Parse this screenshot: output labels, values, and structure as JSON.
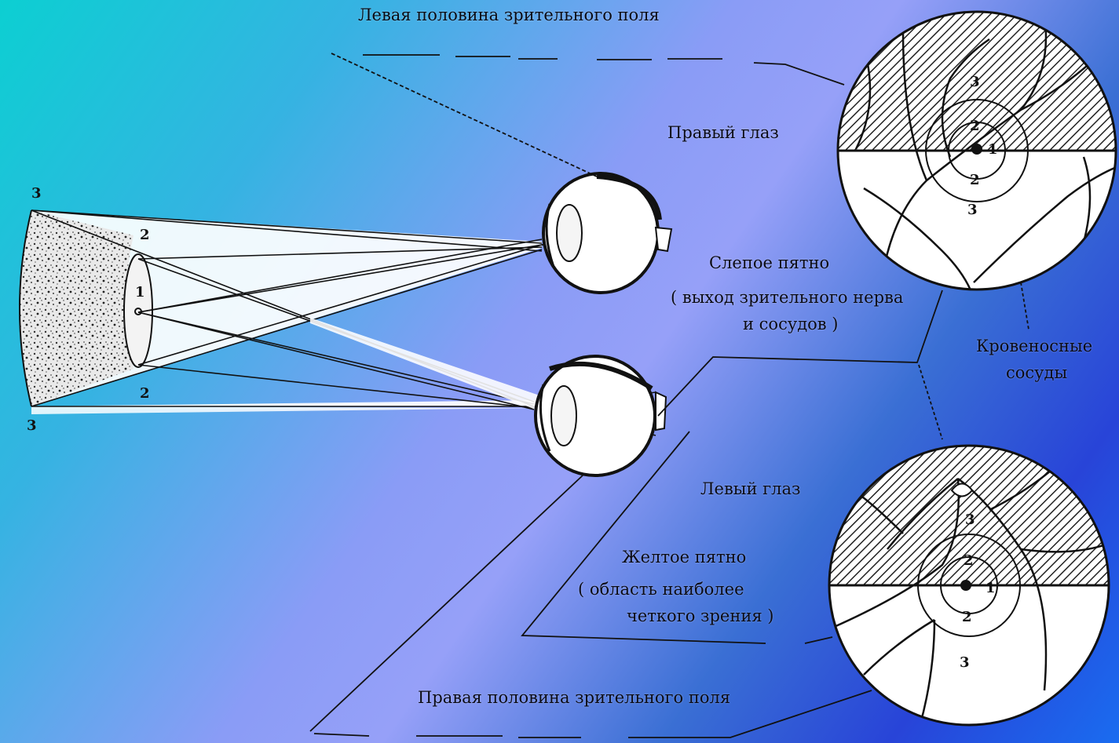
{
  "labels": {
    "left_field": "Левая половина зрительного поля",
    "right_eye": "Правый глаз",
    "blind_spot_title": "Слепое пятно",
    "blind_spot_line2": "( выход зрительного нерва",
    "blind_spot_line3": "и сосудов )",
    "vessels_line1": "Кровеносные",
    "vessels_line2": "сосуды",
    "left_eye": "Левый глаз",
    "yellow_spot_title": "Желтое пятно",
    "yellow_spot_line2": "( область наиболее",
    "yellow_spot_line3": "четкого зрения )",
    "right_field": "Правая половина зрительного поля"
  },
  "markers": {
    "field_top": "3",
    "field_bottom": "3",
    "zone_outer_top": "2",
    "zone_outer_bottom": "2",
    "zone_center": "1",
    "retina_top": {
      "z3a": "3",
      "z2a": "2",
      "z1": "1",
      "z2b": "2",
      "z3b": "3"
    },
    "retina_bottom": {
      "z3a": "3",
      "z2a": "2",
      "z1": "1",
      "z2b": "2",
      "z3b": "3"
    }
  },
  "colors": {
    "ink": "#111111",
    "paper": "#ffffff",
    "gradient_start": "#0ccfd2",
    "gradient_mid": "#96a0f8",
    "gradient_end": "#2844d8"
  }
}
